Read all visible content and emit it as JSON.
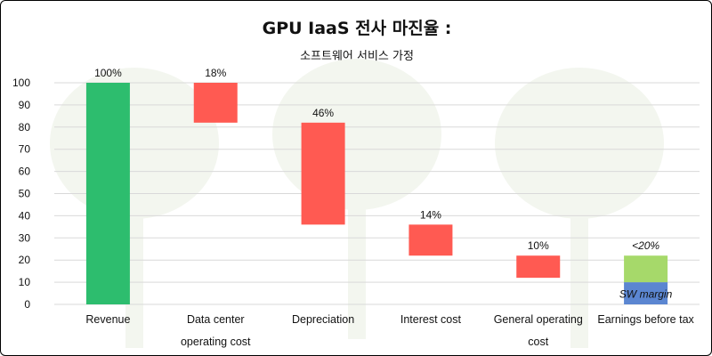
{
  "chart_data": {
    "type": "bar",
    "title": "GPU IaaS 전사 마진율 :",
    "subtitle": "소프트웨어 서비스 가정",
    "ylim": [
      0,
      100
    ],
    "yticks": [
      0,
      10,
      20,
      30,
      40,
      50,
      60,
      70,
      80,
      90,
      100
    ],
    "grid": true,
    "categories": [
      [
        "Revenue"
      ],
      [
        "Data center",
        "operating cost"
      ],
      [
        "Depreciation"
      ],
      [
        "Interest cost"
      ],
      [
        "General operating",
        "cost"
      ],
      [
        "Earnings before tax"
      ]
    ],
    "bars": [
      {
        "base": 0,
        "top": 100,
        "label": "100%",
        "color": "#2dbd6e"
      },
      {
        "base": 82,
        "top": 100,
        "label": "18%",
        "color": "#ff5a52"
      },
      {
        "base": 36,
        "top": 82,
        "label": "46%",
        "color": "#ff5a52"
      },
      {
        "base": 22,
        "top": 36,
        "label": "14%",
        "color": "#ff5a52"
      },
      {
        "base": 12,
        "top": 22,
        "label": "10%",
        "color": "#ff5a52"
      },
      {
        "base": 0,
        "top": 22,
        "label": "<20%",
        "label_italic": true,
        "color": "#a6d96a",
        "segments": [
          {
            "base": 0,
            "top": 10,
            "color": "#5b86d1",
            "label": "SW margin"
          },
          {
            "base": 10,
            "top": 22,
            "color": "#a6d96a"
          }
        ]
      }
    ]
  }
}
